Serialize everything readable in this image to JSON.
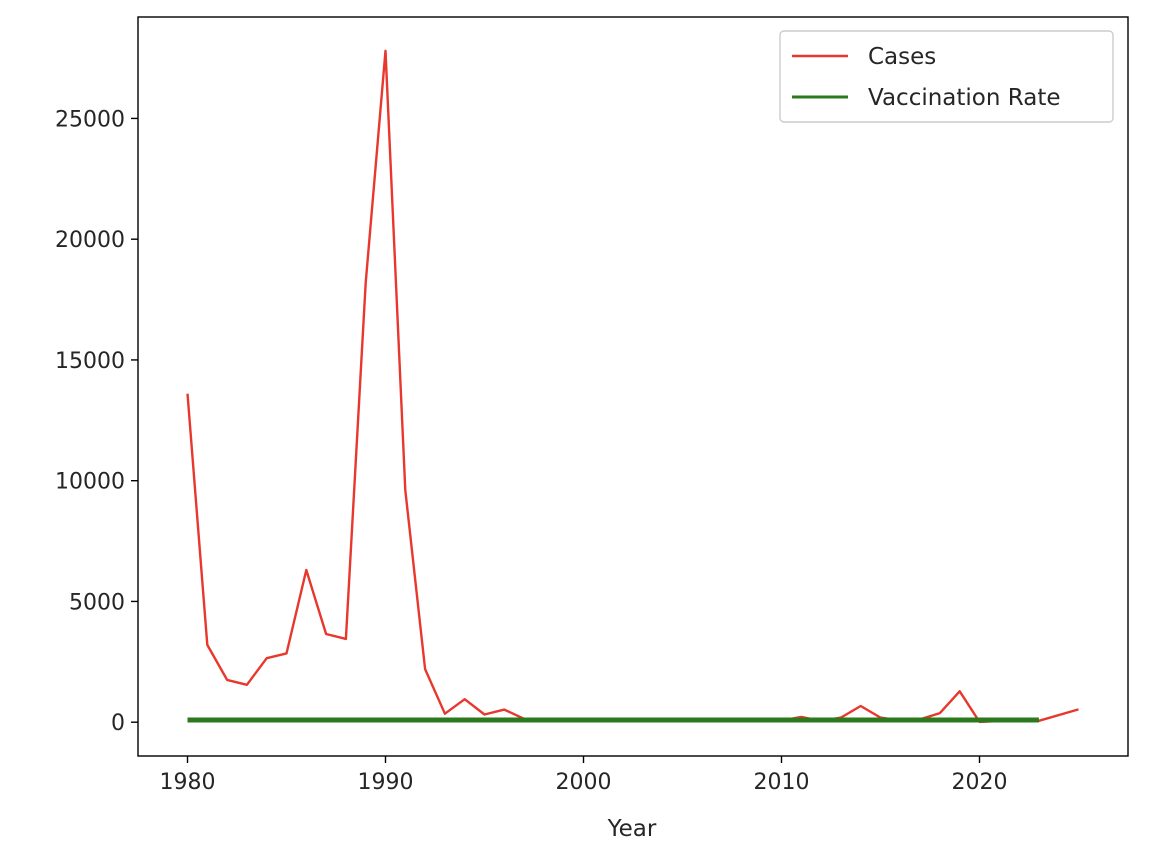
{
  "chart_data": {
    "type": "line",
    "title": "",
    "xlabel": "Year",
    "ylabel": "",
    "xlim": [
      1977.5,
      2027.5
    ],
    "ylim": [
      -1400,
      29200
    ],
    "x_ticks": [
      1980,
      1990,
      2000,
      2010,
      2020
    ],
    "y_ticks": [
      0,
      5000,
      10000,
      15000,
      20000,
      25000
    ],
    "grid": false,
    "legend_position": "top-right",
    "series": [
      {
        "name": "Cases",
        "color": "#e8382e",
        "points": [
          [
            1980,
            13600
          ],
          [
            1981,
            3200
          ],
          [
            1982,
            1750
          ],
          [
            1983,
            1550
          ],
          [
            1984,
            2650
          ],
          [
            1985,
            2850
          ],
          [
            1986,
            6300
          ],
          [
            1987,
            3650
          ],
          [
            1988,
            3450
          ],
          [
            1989,
            18200
          ],
          [
            1990,
            27800
          ],
          [
            1991,
            9600
          ],
          [
            1992,
            2200
          ],
          [
            1993,
            350
          ],
          [
            1994,
            950
          ],
          [
            1995,
            320
          ],
          [
            1996,
            520
          ],
          [
            1997,
            140
          ],
          [
            1998,
            100
          ],
          [
            1999,
            100
          ],
          [
            2000,
            90
          ],
          [
            2001,
            110
          ],
          [
            2002,
            40
          ],
          [
            2003,
            55
          ],
          [
            2004,
            40
          ],
          [
            2005,
            70
          ],
          [
            2006,
            55
          ],
          [
            2007,
            45
          ],
          [
            2008,
            140
          ],
          [
            2009,
            70
          ],
          [
            2010,
            65
          ],
          [
            2011,
            220
          ],
          [
            2012,
            55
          ],
          [
            2013,
            190
          ],
          [
            2014,
            670
          ],
          [
            2015,
            190
          ],
          [
            2016,
            70
          ],
          [
            2017,
            120
          ],
          [
            2018,
            375
          ],
          [
            2019,
            1280
          ],
          [
            2020,
            12
          ],
          [
            2021,
            49
          ],
          [
            2022,
            121
          ],
          [
            2023,
            58
          ],
          [
            2025,
            530
          ]
        ]
      },
      {
        "name": "Vaccination Rate",
        "color": "#2d7a1e",
        "points": [
          [
            1980,
            90
          ],
          [
            1985,
            90
          ],
          [
            1990,
            90
          ],
          [
            1995,
            90
          ],
          [
            2000,
            90
          ],
          [
            2005,
            90
          ],
          [
            2010,
            90
          ],
          [
            2015,
            90
          ],
          [
            2020,
            90
          ],
          [
            2023,
            90
          ]
        ]
      }
    ]
  }
}
